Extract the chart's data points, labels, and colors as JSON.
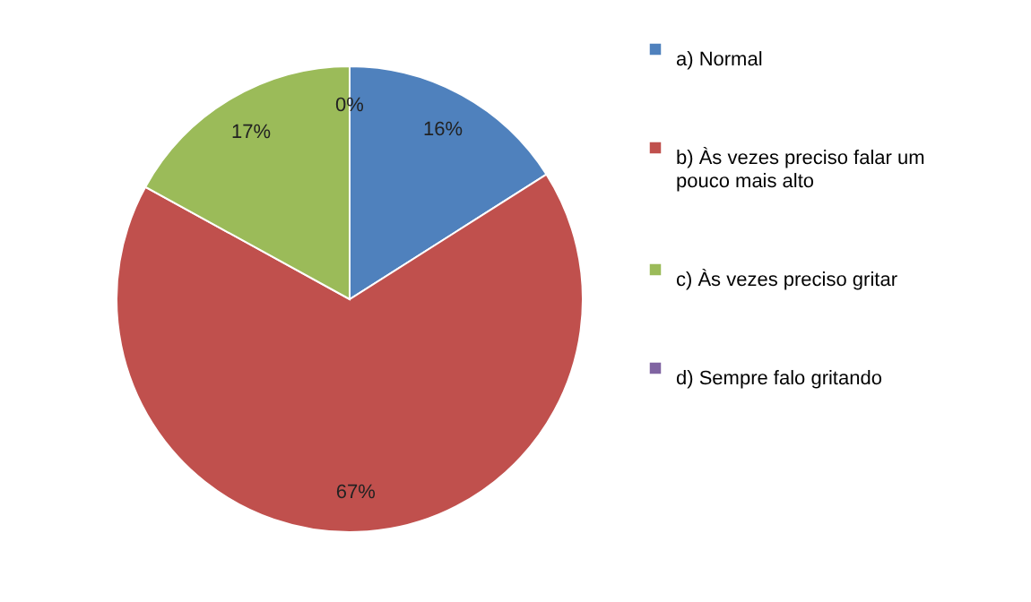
{
  "chart_data": {
    "type": "pie",
    "categories": [
      "a) Normal",
      "b) Às vezes preciso falar um pouco mais alto",
      "c) Às vezes preciso gritar",
      "d) Sempre falo gritando"
    ],
    "values": [
      16,
      67,
      17,
      0
    ],
    "colors": [
      "#4f81bd",
      "#c0504d",
      "#9bbb59",
      "#8064a2"
    ],
    "value_labels": [
      "16%",
      "67%",
      "17%",
      "0%"
    ],
    "legend": "right"
  }
}
